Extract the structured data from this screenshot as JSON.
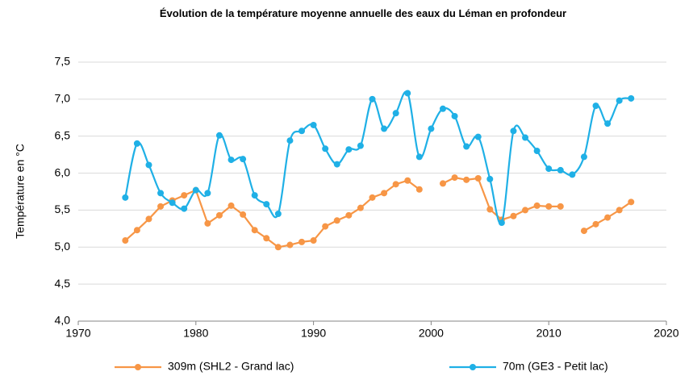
{
  "chart_data": {
    "type": "line",
    "title": "Évolution de la température moyenne annuelle des eaux du Léman  en profondeur",
    "ylabel": "Température en °C",
    "x": [
      1974,
      1975,
      1976,
      1977,
      1978,
      1979,
      1980,
      1981,
      1982,
      1983,
      1984,
      1985,
      1986,
      1987,
      1988,
      1989,
      1990,
      1991,
      1992,
      1993,
      1994,
      1995,
      1996,
      1997,
      1998,
      1999,
      2000,
      2001,
      2002,
      2003,
      2004,
      2005,
      2006,
      2007,
      2008,
      2009,
      2010,
      2011,
      2012,
      2013,
      2014,
      2015,
      2016,
      2017
    ],
    "series": [
      {
        "name": "309m (SHL2 - Grand lac)",
        "color": "#f79646",
        "smooth": false,
        "values": [
          5.09,
          5.23,
          5.38,
          5.55,
          5.63,
          5.7,
          5.77,
          5.32,
          5.43,
          5.56,
          5.44,
          5.23,
          5.12,
          5.0,
          5.03,
          5.07,
          5.09,
          5.28,
          5.36,
          5.43,
          5.53,
          5.67,
          5.73,
          5.85,
          5.9,
          5.78,
          null,
          5.86,
          5.94,
          5.91,
          5.93,
          5.51,
          5.37,
          5.42,
          5.5,
          5.56,
          5.55,
          5.55,
          null,
          5.22,
          5.31,
          5.4,
          5.5,
          5.61
        ]
      },
      {
        "name": "70m (GE3 - Petit lac)",
        "color": "#1fb0e6",
        "smooth": true,
        "values": [
          5.67,
          6.4,
          6.11,
          5.73,
          5.6,
          5.52,
          5.77,
          5.73,
          6.51,
          6.18,
          6.19,
          5.7,
          5.58,
          5.45,
          6.44,
          6.57,
          6.65,
          6.33,
          6.12,
          6.32,
          6.37,
          7.0,
          6.6,
          6.81,
          7.08,
          6.22,
          6.6,
          6.87,
          6.77,
          6.36,
          6.49,
          5.92,
          5.33,
          6.57,
          6.48,
          6.3,
          6.06,
          6.04,
          5.98,
          6.22,
          6.91,
          6.67,
          6.98,
          7.01
        ]
      }
    ],
    "xlim": [
      1970,
      2020
    ],
    "xticks": [
      1970,
      1980,
      1990,
      2000,
      2010,
      2020
    ],
    "ylim": [
      4,
      7.5
    ],
    "yticks": [
      {
        "value": 4,
        "label": "4,0"
      },
      {
        "value": 4.5,
        "label": "4,5"
      },
      {
        "value": 5,
        "label": "5,0"
      },
      {
        "value": 5.5,
        "label": "5,5"
      },
      {
        "value": 6,
        "label": "6,0"
      },
      {
        "value": 6.5,
        "label": "6,5"
      },
      {
        "value": 7,
        "label": "7,0"
      },
      {
        "value": 7.5,
        "label": "7,5"
      }
    ],
    "grid": true,
    "legend": "bottom"
  }
}
